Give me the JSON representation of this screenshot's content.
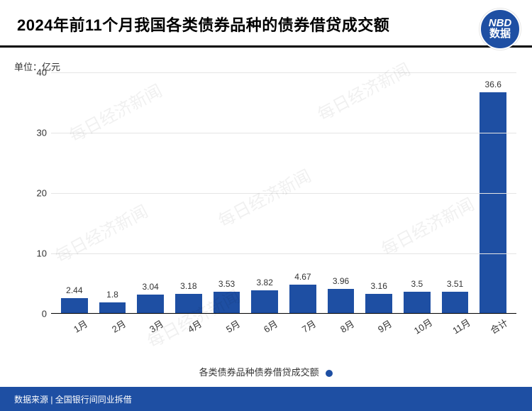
{
  "title": "2024年前11个月我国各类债券品种的债券借贷成交额",
  "badge": {
    "line1": "NBD",
    "line2": "数据",
    "bg": "#1e4fa3"
  },
  "unit_label": "单位：亿元",
  "chart": {
    "type": "bar",
    "categories": [
      "1月",
      "2月",
      "3月",
      "4月",
      "5月",
      "6月",
      "7月",
      "8月",
      "9月",
      "10月",
      "11月",
      "合计"
    ],
    "values": [
      2.44,
      1.8,
      3.04,
      3.18,
      3.53,
      3.82,
      4.67,
      3.96,
      3.16,
      3.5,
      3.51,
      36.6
    ],
    "value_labels": [
      "2.44",
      "1.8",
      "3.04",
      "3.18",
      "3.53",
      "3.82",
      "4.67",
      "3.96",
      "3.16",
      "3.5",
      "3.51",
      "36.6"
    ],
    "bar_color": "#1e4fa3",
    "ylim": [
      0,
      40
    ],
    "yticks": [
      0,
      10,
      20,
      30,
      40
    ],
    "grid_color": "#e5e5e5",
    "axis_color": "#000000",
    "value_fontsize": 12,
    "xlabel_fontsize": 13,
    "bar_width": 0.7,
    "background_color": "#ffffff"
  },
  "legend": {
    "label": "各类债券品种债券借贷成交额",
    "color": "#1e4fa3"
  },
  "footer": {
    "text": "数据来源 | 全国银行间同业拆借",
    "bg": "#1e4fa3"
  },
  "watermark": "每日经济新闻"
}
